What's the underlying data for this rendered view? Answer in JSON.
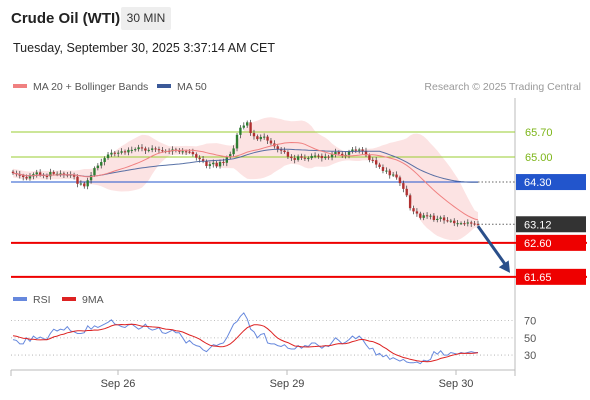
{
  "header": {
    "instrument": "Crude Oil (WTI)",
    "timeframe": "30 MIN",
    "datetime": "Tuesday, September 30, 2025 3:37:14 AM CET",
    "credit": "Research © 2025 Trading Central"
  },
  "colors": {
    "bollinger": "#f08080",
    "ma50": "#3b5998",
    "green_level": "#9acd32",
    "blue_level": "#2255cc",
    "red_level": "#ee0000",
    "current": "#333333",
    "rsi": "#6688dd",
    "rsi_ma": "#dd2222",
    "up_candle": "#2e7d32",
    "down_candle": "#b03030"
  },
  "chart_data": [
    {
      "type": "candlestick",
      "legend": [
        {
          "label": "MA 20 + Bollinger Bands",
          "color": "#f08080"
        },
        {
          "label": "MA 50",
          "color": "#3b5998"
        }
      ],
      "x_ticks": [
        "Sep 26",
        "Sep 29",
        "Sep 30"
      ],
      "ylim": [
        61.45,
        66.65
      ],
      "close": [
        64.55,
        64.52,
        64.48,
        64.44,
        64.4,
        64.46,
        64.52,
        64.57,
        64.5,
        64.47,
        64.46,
        64.58,
        64.53,
        64.53,
        64.54,
        64.51,
        64.48,
        64.51,
        64.45,
        64.25,
        64.26,
        64.18,
        64.35,
        64.49,
        64.69,
        64.76,
        64.86,
        64.97,
        65.07,
        65.12,
        65.1,
        65.12,
        65.16,
        65.13,
        65.2,
        65.2,
        65.22,
        65.27,
        65.24,
        65.18,
        65.2,
        65.24,
        65.22,
        65.19,
        65.17,
        65.17,
        65.16,
        65.21,
        65.18,
        65.15,
        65.16,
        65.15,
        65.14,
        65.08,
        64.98,
        64.94,
        64.88,
        64.75,
        64.8,
        64.84,
        64.74,
        64.86,
        64.84,
        64.99,
        65.08,
        65.24,
        65.62,
        65.82,
        65.88,
        65.97,
        65.67,
        65.58,
        65.5,
        65.56,
        65.57,
        65.46,
        65.38,
        65.3,
        65.21,
        65.18,
        65.14,
        65.01,
        64.97,
        64.92,
        65.02,
        64.98,
        64.97,
        64.97,
        65.03,
        65.04,
        65.03,
        64.97,
        65.01,
        64.99,
        65.08,
        65.14,
        65.09,
        65.04,
        65.06,
        65.15,
        65.21,
        65.18,
        65.21,
        65.17,
        65.05,
        64.92,
        64.91,
        64.79,
        64.72,
        64.61,
        64.62,
        64.49,
        64.51,
        64.43,
        64.27,
        64.11,
        63.93,
        63.57,
        63.48,
        63.42,
        63.3,
        63.37,
        63.35,
        63.36,
        63.24,
        63.27,
        63.31,
        63.23,
        63.22,
        63.22,
        63.15,
        63.15,
        63.15,
        63.14,
        63.17,
        63.14,
        63.13,
        63.12
      ],
      "ma50_end": 64.3,
      "levels": [
        {
          "label": "65.70",
          "value": 65.7,
          "style": "resistance"
        },
        {
          "label": "65.00",
          "value": 65.0,
          "style": "resistance"
        },
        {
          "label": "64.30",
          "value": 64.3,
          "style": "pivot"
        },
        {
          "label": "63.12",
          "value": 63.12,
          "style": "current"
        },
        {
          "label": "62.60",
          "value": 62.6,
          "style": "support"
        },
        {
          "label": "61.65",
          "value": 61.65,
          "style": "target"
        }
      ],
      "projection": {
        "from": 63.12,
        "to": 61.65
      }
    },
    {
      "type": "line",
      "legend": [
        {
          "label": "RSI",
          "color": "#6688dd"
        },
        {
          "label": "9MA",
          "color": "#dd2222"
        }
      ],
      "ylim": [
        15,
        80
      ],
      "y_ticks": [
        "70",
        "50",
        "30"
      ],
      "rsi": [
        48,
        47,
        43,
        43,
        50,
        46,
        52,
        49,
        51,
        49,
        48,
        55,
        60,
        58,
        60,
        59,
        63,
        58,
        57,
        55,
        55,
        56,
        64,
        60,
        64,
        62,
        64,
        66,
        68,
        71,
        66,
        65,
        63,
        62,
        65,
        66,
        63,
        60,
        62,
        66,
        61,
        59,
        60,
        62,
        56,
        55,
        57,
        59,
        56,
        56,
        50,
        44,
        47,
        43,
        41,
        40,
        36,
        34,
        38,
        42,
        41,
        43,
        44,
        50,
        58,
        66,
        69,
        75,
        79,
        72,
        60,
        57,
        50,
        54,
        55,
        44,
        43,
        43,
        41,
        40,
        42,
        38,
        37,
        37,
        41,
        38,
        41,
        40,
        44,
        44,
        41,
        38,
        41,
        40,
        45,
        50,
        47,
        43,
        45,
        48,
        52,
        49,
        52,
        48,
        42,
        37,
        38,
        30,
        32,
        28,
        30,
        25,
        27,
        25,
        23,
        25,
        22,
        21,
        21,
        22,
        20,
        24,
        23,
        25,
        34,
        31,
        35,
        30,
        30,
        33,
        32,
        31,
        33,
        32,
        33,
        34,
        33,
        33
      ],
      "ma9_start": 53
    }
  ]
}
